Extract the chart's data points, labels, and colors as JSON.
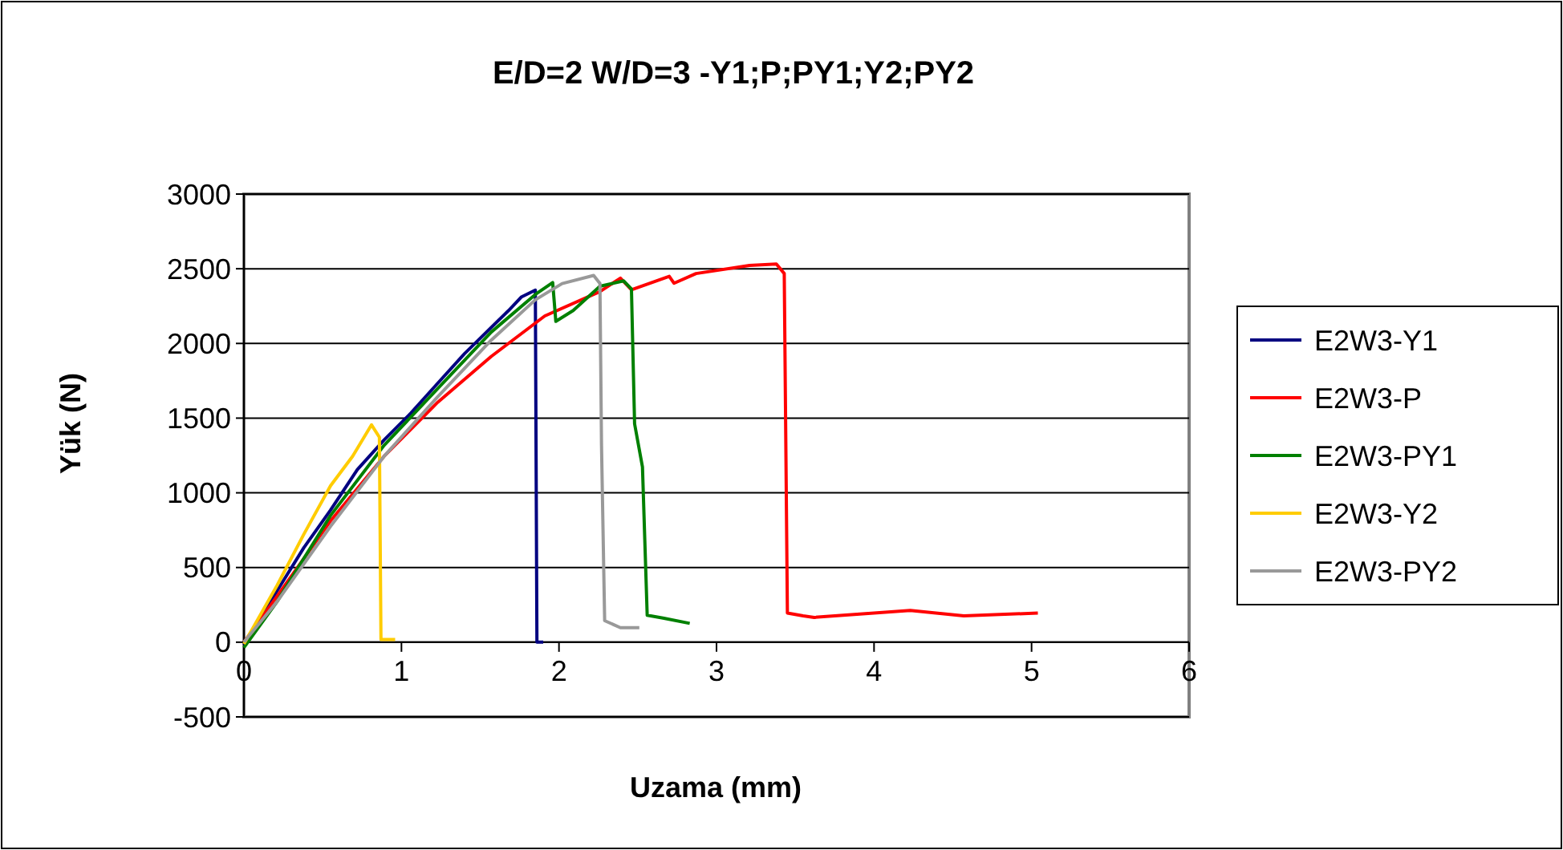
{
  "chart_data": {
    "type": "line",
    "title": "E/D=2 W/D=3 -Y1;P;PY1;Y2;PY2",
    "xlabel": "Uzama (mm)",
    "ylabel": "Yük (N)",
    "xlim": [
      0,
      6
    ],
    "xticks": [
      0,
      1,
      2,
      3,
      4,
      5,
      6
    ],
    "ylim": [
      -500,
      3000
    ],
    "yticks": [
      -500,
      0,
      500,
      1000,
      1500,
      2000,
      2500,
      3000
    ],
    "grid": "y",
    "legend": "right",
    "marker": "none",
    "line_style": "solid",
    "series": [
      {
        "name": "E2W3-Y1",
        "color": "#000080",
        "x": [
          0,
          0.21,
          0.38,
          0.55,
          0.72,
          0.89,
          1.06,
          1.23,
          1.4,
          1.54,
          1.68,
          1.76,
          1.85,
          1.86,
          1.9
        ],
        "values": [
          -18,
          343,
          632,
          884,
          1155,
          1354,
          1534,
          1733,
          1931,
          2076,
          2220,
          2310,
          2357,
          0,
          0
        ]
      },
      {
        "name": "E2W3-P",
        "color": "#ff0000",
        "x": [
          0,
          0.21,
          0.55,
          0.89,
          1.23,
          1.57,
          1.91,
          2.26,
          2.39,
          2.46,
          2.7,
          2.73,
          2.87,
          3.21,
          3.38,
          3.43,
          3.45,
          3.55,
          3.62,
          4.23,
          4.57,
          5.04
        ],
        "values": [
          0,
          307,
          812,
          1245,
          1606,
          1913,
          2184,
          2347,
          2437,
          2359,
          2449,
          2403,
          2468,
          2522,
          2532,
          2468,
          195,
          176,
          166,
          213,
          176,
          195
        ]
      },
      {
        "name": "E2W3-PY1",
        "color": "#008000",
        "x": [
          0,
          0.21,
          0.55,
          0.89,
          1.23,
          1.57,
          1.85,
          1.96,
          1.98,
          2.09,
          2.26,
          2.41,
          2.46,
          2.48,
          2.53,
          2.56,
          2.66,
          2.83
        ],
        "values": [
          -36,
          271,
          848,
          1318,
          1697,
          2076,
          2328,
          2408,
          2148,
          2220,
          2383,
          2419,
          2365,
          1462,
          1173,
          180,
          162,
          126
        ]
      },
      {
        "name": "E2W3-Y2",
        "color": "#ffcc00",
        "x": [
          0,
          0.21,
          0.38,
          0.55,
          0.69,
          0.81,
          0.86,
          0.87,
          0.96
        ],
        "values": [
          -11,
          379,
          722,
          1047,
          1245,
          1455,
          1372,
          18,
          18
        ]
      },
      {
        "name": "E2W3-PY2",
        "color": "#999999",
        "x": [
          0,
          0.21,
          0.55,
          0.89,
          1.23,
          1.57,
          1.85,
          2.02,
          2.22,
          2.26,
          2.27,
          2.29,
          2.39,
          2.51
        ],
        "values": [
          0,
          271,
          776,
          1245,
          1643,
          2022,
          2292,
          2401,
          2455,
          2401,
          1318,
          144,
          97,
          97
        ]
      }
    ]
  }
}
